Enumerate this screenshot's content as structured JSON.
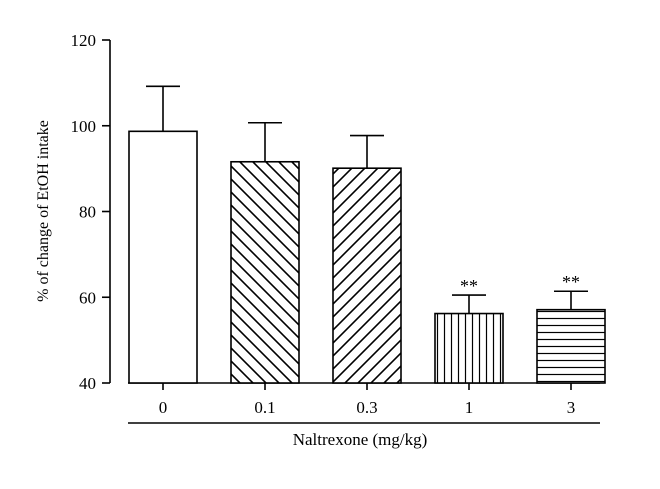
{
  "chart_data": {
    "type": "bar",
    "categories": [
      "0",
      "0.1",
      "0.3",
      "1",
      "3"
    ],
    "values": [
      98.7,
      91.6,
      90.1,
      56.2,
      57.1
    ],
    "error_up": [
      10.5,
      9.1,
      7.6,
      4.3,
      4.3
    ],
    "significance": [
      "",
      "",
      "",
      "**",
      "**"
    ],
    "patterns": [
      "none",
      "diag-down",
      "diag-up",
      "vertical",
      "horizontal"
    ],
    "xlabel": "Naltrexone (mg/kg)",
    "ylabel": "% of change of EtOH intake",
    "ylim": [
      40,
      120
    ],
    "yticks": [
      40,
      60,
      80,
      100,
      120
    ],
    "grid": false,
    "colors": {
      "bar_fill": "#ffffff",
      "stroke": "#000000"
    }
  }
}
